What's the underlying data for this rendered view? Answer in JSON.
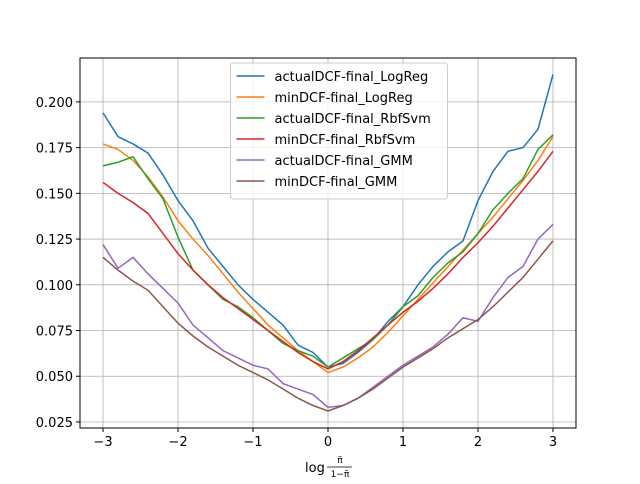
{
  "chart_data": {
    "type": "line",
    "x": [
      -3,
      -2.8,
      -2.6,
      -2.4,
      -2.2,
      -2,
      -1.8,
      -1.6,
      -1.4,
      -1.2,
      -1,
      -0.8,
      -0.6,
      -0.4,
      -0.2,
      0,
      0.2,
      0.4,
      0.6,
      0.8,
      1,
      1.2,
      1.4,
      1.6,
      1.8,
      2,
      2.2,
      2.4,
      2.6,
      2.8,
      3
    ],
    "xlabel": {
      "base": "log",
      "numerator": "π̃",
      "denominator": "1−π̃"
    },
    "xlim": [
      -3.307,
      3.307
    ],
    "xticks": [
      {
        "value": -3,
        "label": "−3"
      },
      {
        "value": -2,
        "label": "−2"
      },
      {
        "value": -1,
        "label": "−1"
      },
      0,
      1,
      2,
      3
    ],
    "ylim": [
      0.0217,
      0.224
    ],
    "yticks": [
      {
        "value": 0.025,
        "label": "0.025"
      },
      {
        "value": 0.05,
        "label": "0.050"
      },
      {
        "value": 0.075,
        "label": "0.075"
      },
      {
        "value": 0.1,
        "label": "0.100"
      },
      {
        "value": 0.125,
        "label": "0.125"
      },
      {
        "value": 0.15,
        "label": "0.150"
      },
      {
        "value": 0.175,
        "label": "0.175"
      },
      {
        "value": 0.2,
        "label": "0.200"
      }
    ],
    "grid": true,
    "legend": "upper center",
    "series": [
      {
        "name": "actualDCF-final_LogReg",
        "color": "#1f77b4",
        "values": [
          0.194,
          0.181,
          0.177,
          0.172,
          0.16,
          0.146,
          0.135,
          0.12,
          0.11,
          0.1,
          0.092,
          0.085,
          0.078,
          0.067,
          0.063,
          0.055,
          0.057,
          0.063,
          0.07,
          0.08,
          0.088,
          0.1,
          0.11,
          0.118,
          0.124,
          0.146,
          0.162,
          0.173,
          0.175,
          0.185,
          0.215
        ]
      },
      {
        "name": "minDCF-final_LogReg",
        "color": "#ff7f0e",
        "values": [
          0.177,
          0.174,
          0.168,
          0.159,
          0.148,
          0.135,
          0.125,
          0.116,
          0.106,
          0.096,
          0.087,
          0.078,
          0.071,
          0.064,
          0.058,
          0.052,
          0.055,
          0.06,
          0.066,
          0.074,
          0.083,
          0.092,
          0.101,
          0.11,
          0.119,
          0.128,
          0.137,
          0.147,
          0.157,
          0.168,
          0.181
        ]
      },
      {
        "name": "actualDCF-final_RbfSvm",
        "color": "#2ca02c",
        "values": [
          0.165,
          0.167,
          0.17,
          0.158,
          0.147,
          0.126,
          0.108,
          0.1,
          0.092,
          0.088,
          0.082,
          0.075,
          0.068,
          0.064,
          0.061,
          0.055,
          0.06,
          0.065,
          0.07,
          0.078,
          0.088,
          0.094,
          0.104,
          0.112,
          0.118,
          0.128,
          0.141,
          0.15,
          0.158,
          0.174,
          0.182
        ]
      },
      {
        "name": "minDCF-final_RbfSvm",
        "color": "#d62728",
        "values": [
          0.156,
          0.15,
          0.145,
          0.139,
          0.128,
          0.117,
          0.108,
          0.1,
          0.093,
          0.087,
          0.081,
          0.075,
          0.069,
          0.063,
          0.058,
          0.054,
          0.058,
          0.064,
          0.071,
          0.078,
          0.085,
          0.091,
          0.098,
          0.106,
          0.115,
          0.123,
          0.132,
          0.142,
          0.152,
          0.162,
          0.173
        ]
      },
      {
        "name": "actualDCF-final_GMM",
        "color": "#9467bd",
        "values": [
          0.122,
          0.109,
          0.115,
          0.106,
          0.098,
          0.09,
          0.078,
          0.071,
          0.064,
          0.06,
          0.056,
          0.054,
          0.046,
          0.043,
          0.04,
          0.033,
          0.034,
          0.038,
          0.044,
          0.05,
          0.056,
          0.061,
          0.066,
          0.073,
          0.082,
          0.08,
          0.093,
          0.104,
          0.11,
          0.125,
          0.133
        ]
      },
      {
        "name": "minDCF-final_GMM",
        "color": "#8c564b",
        "values": [
          0.115,
          0.108,
          0.102,
          0.097,
          0.088,
          0.079,
          0.072,
          0.066,
          0.061,
          0.056,
          0.052,
          0.048,
          0.043,
          0.038,
          0.034,
          0.031,
          0.034,
          0.038,
          0.043,
          0.049,
          0.055,
          0.06,
          0.065,
          0.071,
          0.076,
          0.081,
          0.088,
          0.096,
          0.104,
          0.114,
          0.124
        ]
      }
    ]
  }
}
